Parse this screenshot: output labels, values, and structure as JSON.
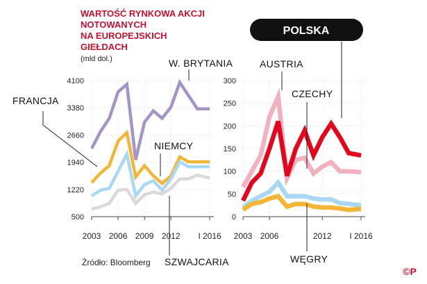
{
  "title_lines": [
    "WARTOŚĆ RYNKOWA AKCJI",
    "NOTOWANYCH",
    "NA EUROPEJSKICH",
    "GIEŁDACH"
  ],
  "unit": "(mld dol.)",
  "source": "Źródło: Bloomberg",
  "copyright": "©P",
  "badge": "POLSKA",
  "colors": {
    "title": "#c8102e",
    "purple": "#a594c6",
    "orange": "#f2b536",
    "lightblue": "#a9d8f2",
    "lightgray": "#d9d9d9",
    "red": "#e3061d",
    "pink": "#f2b1be"
  },
  "chart_data": [
    {
      "type": "line",
      "panel": "left",
      "ylim": [
        500,
        4100
      ],
      "yticks": [
        500,
        1220,
        1940,
        2660,
        3380,
        4100
      ],
      "ytick_labels": [
        "500",
        "1220",
        "1940",
        "2660",
        "3380",
        "4100"
      ],
      "xlim": [
        2003,
        2016.4
      ],
      "xticks": [
        2003,
        2006,
        2009,
        2012,
        2016.4
      ],
      "xtick_labels": [
        "2003",
        "2006",
        "2009",
        "2012",
        "I 2016"
      ],
      "grid": true,
      "series": [
        {
          "name": "W. BRYTANIA",
          "color": "#a594c6",
          "x": [
            2003,
            2004,
            2005,
            2006,
            2007,
            2008,
            2009,
            2010,
            2011,
            2012,
            2013,
            2014,
            2015,
            2016.4
          ],
          "y": [
            2300,
            2750,
            3100,
            3800,
            4000,
            2000,
            3000,
            3300,
            3100,
            3400,
            4050,
            3700,
            3350,
            3350
          ]
        },
        {
          "name": "FRANCJA",
          "color": "#f2b536",
          "x": [
            2003,
            2004,
            2005,
            2006,
            2007,
            2008,
            2009,
            2010,
            2011,
            2012,
            2013,
            2014,
            2015,
            2016.4
          ],
          "y": [
            1400,
            1650,
            1850,
            2500,
            2720,
            1550,
            1850,
            1580,
            1380,
            1580,
            2080,
            1950,
            1950,
            1950
          ]
        },
        {
          "name": "NIEMCY",
          "color": "#a9d8f2",
          "x": [
            2003,
            2004,
            2005,
            2006,
            2007,
            2008,
            2009,
            2010,
            2011,
            2012,
            2013,
            2014,
            2015,
            2016.4
          ],
          "y": [
            1050,
            1200,
            1250,
            1700,
            2160,
            1050,
            1350,
            1450,
            1200,
            1500,
            1950,
            1820,
            1820,
            1820
          ]
        },
        {
          "name": "SZWAJCARIA",
          "color": "#d9d9d9",
          "x": [
            2003,
            2004,
            2005,
            2006,
            2007,
            2008,
            2009,
            2010,
            2011,
            2012,
            2013,
            2014,
            2015,
            2016.4
          ],
          "y": [
            700,
            760,
            850,
            1200,
            1220,
            850,
            1080,
            1150,
            1100,
            1250,
            1500,
            1500,
            1600,
            1520
          ]
        }
      ]
    },
    {
      "type": "line",
      "panel": "right",
      "ylim": [
        0,
        300
      ],
      "yticks": [
        0,
        50,
        100,
        150,
        200,
        250,
        300
      ],
      "ytick_labels": [
        "0",
        "50",
        "100",
        "150",
        "200",
        "250",
        "300"
      ],
      "xlim": [
        2003,
        2016.4
      ],
      "xticks": [
        2003,
        2006,
        2012,
        2016.4
      ],
      "xtick_labels": [
        "2003",
        "2006",
        "2012",
        "I 2016"
      ],
      "grid": true,
      "series": [
        {
          "name": "AUSTRIA",
          "color": "#f2b1be",
          "x": [
            2003,
            2004,
            2005,
            2006,
            2007,
            2008,
            2009,
            2010,
            2011,
            2012,
            2013,
            2014,
            2015,
            2016.4
          ],
          "y": [
            65,
            100,
            135,
            220,
            265,
            85,
            125,
            130,
            95,
            110,
            120,
            100,
            100,
            98
          ]
        },
        {
          "name": "POLSKA",
          "color": "#e3061d",
          "x": [
            2003,
            2004,
            2005,
            2006,
            2007,
            2008,
            2009,
            2010,
            2011,
            2012,
            2013,
            2014,
            2015,
            2016.4
          ],
          "y": [
            35,
            75,
            95,
            150,
            210,
            90,
            150,
            190,
            135,
            175,
            205,
            175,
            140,
            135
          ]
        },
        {
          "name": "CZECHY",
          "color": "#a9d8f2",
          "x": [
            2003,
            2004,
            2005,
            2006,
            2007,
            2008,
            2009,
            2010,
            2011,
            2012,
            2013,
            2014,
            2015,
            2016.4
          ],
          "y": [
            20,
            35,
            45,
            55,
            75,
            45,
            45,
            45,
            40,
            38,
            38,
            30,
            28,
            25
          ]
        },
        {
          "name": "WĘGRY",
          "color": "#f2b536",
          "x": [
            2003,
            2004,
            2005,
            2006,
            2007,
            2008,
            2009,
            2010,
            2011,
            2012,
            2013,
            2014,
            2015,
            2016.4
          ],
          "y": [
            15,
            28,
            32,
            40,
            45,
            22,
            28,
            28,
            22,
            20,
            20,
            18,
            15,
            17
          ]
        }
      ]
    }
  ]
}
